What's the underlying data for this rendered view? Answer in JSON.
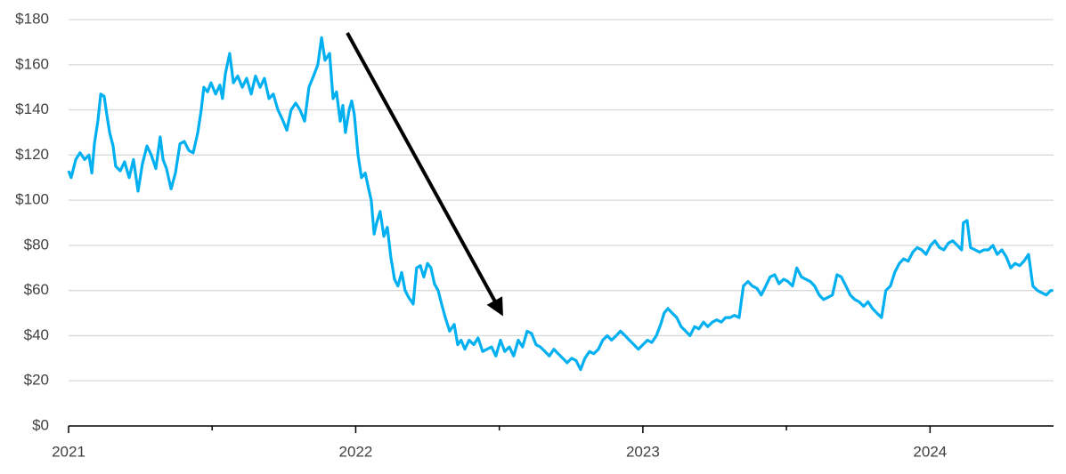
{
  "chart_data": {
    "type": "line",
    "x": [
      2021.0,
      2021.009,
      2021.025,
      2021.04,
      2021.056,
      2021.071,
      2021.081,
      2021.09,
      2021.102,
      2021.112,
      2021.124,
      2021.133,
      2021.143,
      2021.155,
      2021.164,
      2021.18,
      2021.195,
      2021.211,
      2021.226,
      2021.242,
      2021.257,
      2021.273,
      2021.288,
      2021.304,
      2021.319,
      2021.329,
      2021.341,
      2021.357,
      2021.372,
      2021.388,
      2021.403,
      2021.419,
      2021.434,
      2021.45,
      2021.462,
      2021.471,
      2021.484,
      2021.496,
      2021.512,
      2021.527,
      2021.536,
      2021.546,
      2021.561,
      2021.574,
      2021.589,
      2021.605,
      2021.62,
      2021.636,
      2021.651,
      2021.667,
      2021.682,
      2021.698,
      2021.713,
      2021.729,
      2021.744,
      2021.76,
      2021.775,
      2021.791,
      2021.806,
      2021.822,
      2021.837,
      2021.853,
      2021.868,
      2021.881,
      2021.893,
      2021.909,
      2021.921,
      2021.933,
      2021.946,
      2021.955,
      2021.964,
      2021.977,
      2021.986,
      2021.995,
      2022.008,
      2022.02,
      2022.033,
      2022.045,
      2022.054,
      2022.064,
      2022.073,
      2022.085,
      2022.098,
      2022.11,
      2022.122,
      2022.135,
      2022.147,
      2022.16,
      2022.172,
      2022.184,
      2022.2,
      2022.212,
      2022.225,
      2022.237,
      2022.25,
      2022.262,
      2022.274,
      2022.287,
      2022.299,
      2022.312,
      2022.327,
      2022.343,
      2022.355,
      2022.367,
      2022.38,
      2022.395,
      2022.411,
      2022.426,
      2022.442,
      2022.457,
      2022.473,
      2022.488,
      2022.504,
      2022.519,
      2022.535,
      2022.55,
      2022.566,
      2022.581,
      2022.597,
      2022.612,
      2022.628,
      2022.643,
      2022.659,
      2022.674,
      2022.69,
      2022.705,
      2022.721,
      2022.736,
      2022.752,
      2022.767,
      2022.783,
      2022.798,
      2022.814,
      2022.829,
      2022.845,
      2022.86,
      2022.876,
      2022.891,
      2022.907,
      2022.922,
      2022.938,
      2022.953,
      2022.969,
      2022.984,
      2023.0,
      2023.016,
      2023.031,
      2023.047,
      2023.062,
      2023.074,
      2023.087,
      2023.102,
      2023.118,
      2023.133,
      2023.149,
      2023.164,
      2023.18,
      2023.195,
      2023.211,
      2023.226,
      2023.242,
      2023.257,
      2023.273,
      2023.288,
      2023.304,
      2023.319,
      2023.335,
      2023.35,
      2023.366,
      2023.381,
      2023.397,
      2023.412,
      2023.428,
      2023.443,
      2023.459,
      2023.474,
      2023.49,
      2023.505,
      2023.521,
      2023.536,
      2023.552,
      2023.567,
      2023.583,
      2023.598,
      2023.614,
      2023.629,
      2023.645,
      2023.66,
      2023.676,
      2023.691,
      2023.707,
      2023.722,
      2023.738,
      2023.753,
      2023.769,
      2023.784,
      2023.8,
      2023.815,
      2023.831,
      2023.846,
      2023.862,
      2023.877,
      2023.893,
      2023.908,
      2023.924,
      2023.94,
      2023.955,
      2023.971,
      2023.986,
      2024.002,
      2024.017,
      2024.033,
      2024.048,
      2024.064,
      2024.079,
      2024.095,
      2024.11,
      2024.116,
      2024.129,
      2024.141,
      2024.157,
      2024.172,
      2024.188,
      2024.203,
      2024.219,
      2024.234,
      2024.25,
      2024.265,
      2024.281,
      2024.296,
      2024.312,
      2024.327,
      2024.343,
      2024.358,
      2024.374,
      2024.389,
      2024.405,
      2024.42,
      2024.429
    ],
    "values": [
      113,
      110,
      118,
      121,
      118,
      120,
      112,
      125,
      135,
      147,
      146,
      138,
      130,
      124,
      115,
      113,
      117,
      110,
      118,
      104,
      116,
      124,
      120,
      114,
      128,
      118,
      114,
      105,
      112,
      125,
      126,
      122,
      121,
      130,
      140,
      150,
      148,
      152,
      147,
      151,
      145,
      156,
      165,
      152,
      155,
      150,
      154,
      147,
      155,
      150,
      154,
      145,
      147,
      140,
      136,
      131,
      140,
      143,
      140,
      135,
      150,
      155,
      160,
      172,
      162,
      165,
      145,
      148,
      135,
      142,
      130,
      140,
      144,
      138,
      120,
      110,
      112,
      105,
      100,
      85,
      90,
      95,
      84,
      88,
      75,
      65,
      62,
      68,
      60,
      57,
      54,
      70,
      71,
      66,
      72,
      70,
      63,
      60,
      54,
      48,
      42,
      45,
      36,
      38,
      34,
      38,
      36,
      39,
      33,
      34,
      35,
      31,
      38,
      33,
      35,
      31,
      38,
      35,
      42,
      41,
      36,
      35,
      33,
      31,
      34,
      32,
      30,
      28,
      30,
      29,
      25,
      30,
      33,
      32,
      34,
      38,
      40,
      38,
      40,
      42,
      40,
      38,
      36,
      34,
      36,
      38,
      37,
      40,
      45,
      50,
      52,
      50,
      48,
      44,
      42,
      40,
      44,
      43,
      46,
      44,
      46,
      47,
      46,
      48,
      48,
      49,
      48,
      62,
      64,
      62,
      61,
      58,
      62,
      66,
      67,
      63,
      65,
      64,
      62,
      70,
      66,
      65,
      64,
      62,
      58,
      56,
      57,
      58,
      67,
      66,
      62,
      58,
      56,
      55,
      53,
      55,
      52,
      50,
      48,
      60,
      62,
      68,
      72,
      74,
      73,
      77,
      79,
      78,
      76,
      80,
      82,
      79,
      78,
      81,
      82,
      80,
      78,
      90,
      91,
      79,
      78,
      77,
      78,
      78,
      80,
      76,
      78,
      75,
      70,
      72,
      71,
      73,
      76,
      62,
      60,
      59,
      58,
      60,
      60
    ],
    "color": "#00b0f0",
    "xlim": [
      2021,
      2024.43
    ],
    "xticks": [
      2021,
      2022,
      2023,
      2024
    ],
    "xminor_ticks": [
      2021.5,
      2022.5,
      2023.5
    ],
    "ylim": [
      0,
      180
    ],
    "yticks": [
      {
        "value": 0,
        "label": "$0"
      },
      {
        "value": 20,
        "label": "$20"
      },
      {
        "value": 40,
        "label": "$40"
      },
      {
        "value": 60,
        "label": "$60"
      },
      {
        "value": 80,
        "label": "$80"
      },
      {
        "value": 100,
        "label": "$100"
      },
      {
        "value": 120,
        "label": "$120"
      },
      {
        "value": 140,
        "label": "$140"
      },
      {
        "value": 160,
        "label": "$160"
      },
      {
        "value": 180,
        "label": "$180"
      }
    ],
    "grid": true
  }
}
